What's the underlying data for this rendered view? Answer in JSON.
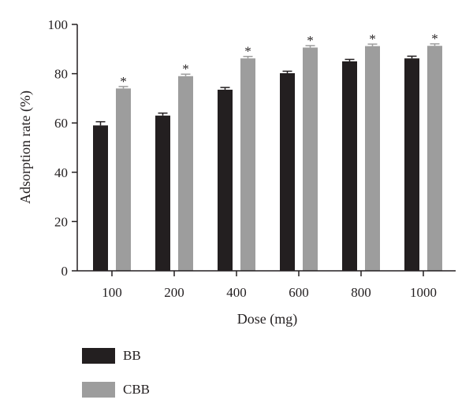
{
  "chart_data": {
    "type": "bar",
    "title": "",
    "xlabel": "Dose (mg)",
    "ylabel": "Adsorption rate (%)",
    "categories": [
      "100",
      "200",
      "400",
      "600",
      "800",
      "1000"
    ],
    "ylim": [
      0,
      100
    ],
    "yticks": [
      0,
      20,
      40,
      60,
      80,
      100
    ],
    "series": [
      {
        "name": "BB",
        "color": "#231f20",
        "values": [
          59,
          63,
          73.5,
          80.2,
          85,
          86.2
        ],
        "errors": [
          1.5,
          1.0,
          0.9,
          0.8,
          0.8,
          0.9
        ],
        "significance": [
          "",
          "",
          "",
          "",
          "",
          ""
        ]
      },
      {
        "name": "CBB",
        "color": "#9d9d9d",
        "values": [
          74,
          79,
          86.2,
          90.6,
          91.2,
          91.3
        ],
        "errors": [
          0.8,
          0.8,
          0.8,
          0.8,
          0.8,
          0.8
        ],
        "significance": [
          "*",
          "*",
          "*",
          "*",
          "*",
          "*"
        ]
      }
    ],
    "grid": false,
    "legend_position": "bottom-left"
  }
}
